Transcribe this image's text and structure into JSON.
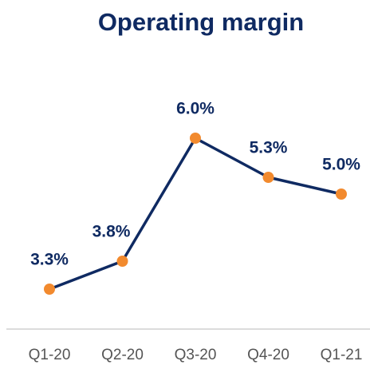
{
  "chart_data": {
    "type": "line",
    "title": "Operating margin",
    "categories": [
      "Q1-20",
      "Q2-20",
      "Q3-20",
      "Q4-20",
      "Q1-21"
    ],
    "values": [
      3.3,
      3.8,
      6.0,
      5.3,
      5.0
    ],
    "value_labels": [
      "3.3%",
      "3.8%",
      "6.0%",
      "5.3%",
      "5.0%"
    ],
    "color": "#0f2a62",
    "marker_color": "#f28a2e"
  }
}
